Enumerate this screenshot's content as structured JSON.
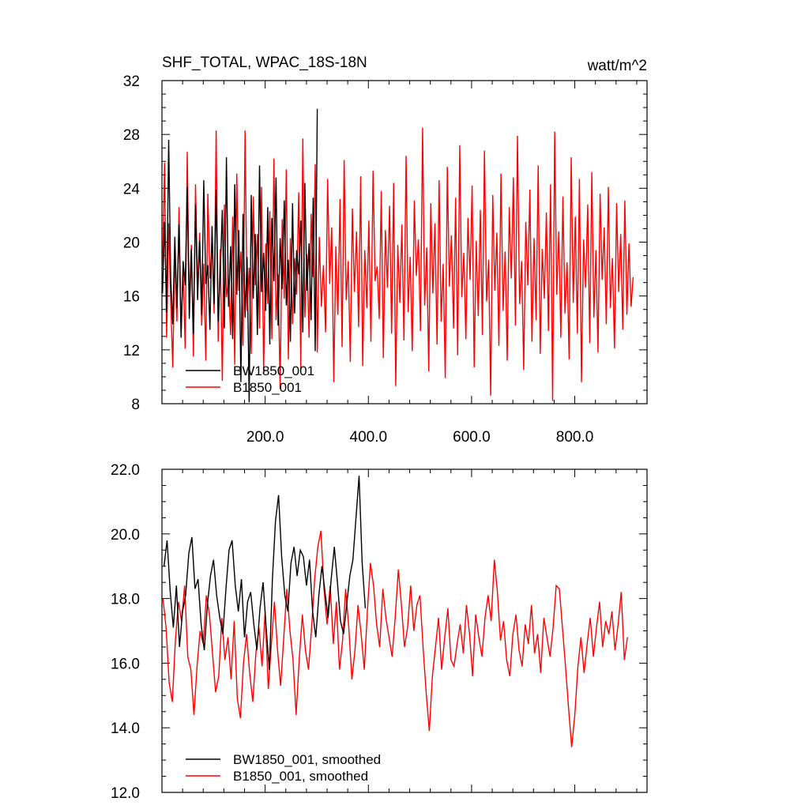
{
  "chart_data": [
    {
      "type": "line",
      "title": "SHF_TOTAL, WPAC_18S-18N",
      "units": "watt/m^2",
      "xlim": [
        0,
        940
      ],
      "ylim": [
        8,
        32
      ],
      "yticks": [
        8,
        12,
        16,
        20,
        24,
        28,
        32
      ],
      "yticklabels": [
        "8",
        "12",
        "16",
        "20",
        "24",
        "28",
        "32"
      ],
      "xticks": [
        200,
        400,
        600,
        800
      ],
      "xticklabels": [
        "200.0",
        "400.0",
        "600.0",
        "800.0"
      ],
      "grid": false,
      "legend_position": "bottom-left",
      "series": [
        {
          "name": "BW1850_001",
          "color": "#000000",
          "x_start": 1,
          "x_step": 4,
          "values": [
            16.2,
            21.5,
            14.8,
            27.6,
            17.3,
            13.9,
            20.4,
            15.1,
            21.3,
            12.9,
            18.6,
            16.8,
            24.1,
            14.3,
            19.5,
            13.2,
            22.8,
            15.7,
            20.1,
            14.6,
            24.6,
            16.9,
            18.3,
            13.5,
            21.2,
            15.4,
            23.9,
            14.1,
            17.8,
            22.4,
            13.6,
            26.3,
            15.2,
            19.7,
            12.8,
            24.3,
            16.1,
            20.9,
            9.6,
            22.1,
            14.4,
            18.9,
            8.1,
            23.5,
            15.8,
            20.6,
            13.1,
            25.7,
            16.3,
            19.2,
            14.9,
            22.6,
            12.4,
            21.8,
            17.1,
            24.8,
            13.8,
            20.3,
            16.5,
            23.1,
            15.3,
            18.7,
            12.6,
            22.9,
            14.7,
            19.4,
            17.6,
            21.6,
            13.3,
            24.4,
            16.4,
            19.9,
            14.2,
            23.3,
            11.9,
            29.9
          ]
        },
        {
          "name": "B1850_001",
          "color": "#ff0000",
          "x_start": 1,
          "x_step": 4,
          "values": [
            17.8,
            25.9,
            12.9,
            21.4,
            15.6,
            10.7,
            19.3,
            14.1,
            22.6,
            13.4,
            17.9,
            12.1,
            26.7,
            15.2,
            19.8,
            11.5,
            24.3,
            16.6,
            20.7,
            13.8,
            18.4,
            11.2,
            23.6,
            17.3,
            20.1,
            14.7,
            28.3,
            12.6,
            19.5,
            9.7,
            22.8,
            15.9,
            17.2,
            13.1,
            21.9,
            10.9,
            25.1,
            16.4,
            19.3,
            12.3,
            28.3,
            14.9,
            18.1,
            11.7,
            23.4,
            16.8,
            20.6,
            13.6,
            24.1,
            10.3,
            19.9,
            15.4,
            22.3,
            12.8,
            26.2,
            14.2,
            17.6,
            9.1,
            21.7,
            15.8,
            25.4,
            11.3,
            20.3,
            13.9,
            18.8,
            16.1,
            23.7,
            10.6,
            27.7,
            14.4,
            19.1,
            12.9,
            22.1,
            17.4,
            25.8,
            11.8,
            20.4,
            15.2,
            18.3,
            13.3,
            24.7,
            16.9,
            21.1,
            9.6,
            19.7,
            14.6,
            23.2,
            12.2,
            26.1,
            15.7,
            18.6,
            11.1,
            22.5,
            16.3,
            20.8,
            13.7,
            24.9,
            10.8,
            19.4,
            15.1,
            21.6,
            12.6,
            25.3,
            17.1,
            18.2,
            14.3,
            23.8,
            11.4,
            20.9,
            16.6,
            22.7,
            13.2,
            24.4,
            9.3,
            19.8,
            15.5,
            21.3,
            12.7,
            26.4,
            14.8,
            18.9,
            11.9,
            23.1,
            17.5,
            20.2,
            13.4,
            28.5,
            15.3,
            19.6,
            10.4,
            22.9,
            16.2,
            21.4,
            12.4,
            24.6,
            14.1,
            18.4,
            9.9,
            25.6,
            16.7,
            20.5,
            13.6,
            23.3,
            11.6,
            27.2,
            15.9,
            19.2,
            12.8,
            21.8,
            17.2,
            24.2,
            10.7,
            20.1,
            14.5,
            22.4,
            13.1,
            26.8,
            15.6,
            18.7,
            8.6,
            23.5,
            16.4,
            20.7,
            12.3,
            25.1,
            14.9,
            19.3,
            11.2,
            22.6,
            17.3,
            24.8,
            13.8,
            27.9,
            15.4,
            18.6,
            10.5,
            21.5,
            16.8,
            23.9,
            12.6,
            20.3,
            14.2,
            25.7,
            11.7,
            19.5,
            15.8,
            22.2,
            13.4,
            24.3,
            8.2,
            28.2,
            16.1,
            20.8,
            12.9,
            23.4,
            14.7,
            18.5,
            11.3,
            26.3,
            15.5,
            21.9,
            13.2,
            24.7,
            9.6,
            20.2,
            16.6,
            22.8,
            12.5,
            25.2,
            14.4,
            19.4,
            11.8,
            23.6,
            17.2,
            21.1,
            13.9,
            24.1,
            15.1,
            18.8,
            12.1,
            22.9,
            16.3,
            20.6,
            13.5,
            23.1,
            14.6,
            19.9,
            15.2,
            17.4
          ]
        }
      ]
    },
    {
      "type": "line",
      "title": "",
      "xlim": [
        0,
        940
      ],
      "ylim": [
        12.0,
        22.0
      ],
      "yticks": [
        12,
        14,
        16,
        18,
        20,
        22
      ],
      "yticklabels": [
        "12.0",
        "14.0",
        "16.0",
        "18.0",
        "20.0",
        "22.0"
      ],
      "grid": false,
      "legend_position": "bottom-left",
      "series": [
        {
          "name": "BW1850_001, smoothed",
          "color": "#000000",
          "x_start": 4,
          "x_step": 6,
          "values": [
            19.0,
            19.8,
            18.2,
            17.1,
            18.4,
            16.5,
            17.6,
            18.1,
            19.4,
            19.9,
            18.3,
            18.6,
            17.2,
            16.4,
            17.8,
            18.7,
            19.2,
            18.1,
            17.4,
            16.9,
            18.3,
            19.5,
            19.8,
            18.4,
            17.6,
            18.6,
            16.8,
            17.9,
            18.2,
            17.2,
            16.4,
            17.7,
            18.5,
            17.1,
            15.8,
            18.6,
            20.4,
            21.2,
            19.3,
            18.1,
            17.6,
            19.1,
            19.6,
            18.7,
            19.5,
            19.3,
            18.4,
            19.2,
            17.6,
            16.8,
            18.1,
            19.0,
            18.2,
            17.4,
            18.6,
            19.6,
            18.5,
            17.3,
            16.9,
            17.8,
            18.7,
            19.2,
            20.5,
            21.8,
            19.1,
            17.7
          ]
        },
        {
          "name": "B1850_001, smoothed",
          "color": "#ff0000",
          "x_start": 2,
          "x_step": 6,
          "values": [
            18.0,
            17.1,
            15.4,
            14.8,
            16.7,
            17.9,
            17.3,
            18.4,
            16.2,
            15.8,
            14.4,
            15.9,
            17.0,
            16.6,
            18.1,
            17.5,
            16.3,
            15.1,
            15.6,
            17.4,
            16.1,
            16.8,
            15.5,
            17.3,
            14.9,
            14.3,
            16.0,
            16.9,
            15.7,
            14.8,
            16.3,
            17.1,
            15.9,
            17.6,
            15.2,
            16.6,
            17.9,
            16.4,
            15.3,
            16.8,
            18.3,
            17.0,
            16.1,
            14.4,
            16.1,
            17.5,
            16.4,
            15.8,
            17.1,
            18.6,
            19.6,
            20.1,
            18.3,
            17.2,
            18.4,
            16.6,
            17.9,
            15.8,
            16.7,
            18.3,
            17.1,
            15.5,
            16.4,
            17.8,
            16.9,
            15.8,
            17.6,
            19.1,
            18.4,
            17.2,
            16.5,
            18.3,
            17.4,
            16.8,
            16.2,
            17.4,
            18.9,
            17.8,
            16.5,
            17.1,
            18.4,
            17.0,
            17.8,
            18.1,
            16.5,
            15.1,
            13.9,
            15.6,
            16.5,
            17.4,
            15.8,
            16.8,
            17.7,
            16.1,
            15.9,
            16.6,
            17.2,
            16.3,
            17.8,
            16.9,
            15.6,
            17.5,
            16.8,
            16.2,
            17.4,
            18.1,
            17.3,
            19.2,
            18.2,
            16.7,
            17.3,
            16.1,
            15.6,
            16.9,
            17.5,
            16.4,
            15.9,
            17.2,
            16.6,
            17.8,
            16.3,
            16.9,
            15.7,
            17.4,
            16.8,
            16.2,
            17.1,
            18.4,
            18.3,
            17.1,
            15.9,
            14.6,
            13.4,
            14.4,
            15.9,
            16.8,
            15.7,
            16.6,
            17.4,
            16.2,
            17.1,
            17.9,
            16.5,
            17.3,
            16.9,
            17.6,
            16.4,
            17.2,
            18.2,
            16.1,
            16.8
          ]
        }
      ]
    }
  ]
}
